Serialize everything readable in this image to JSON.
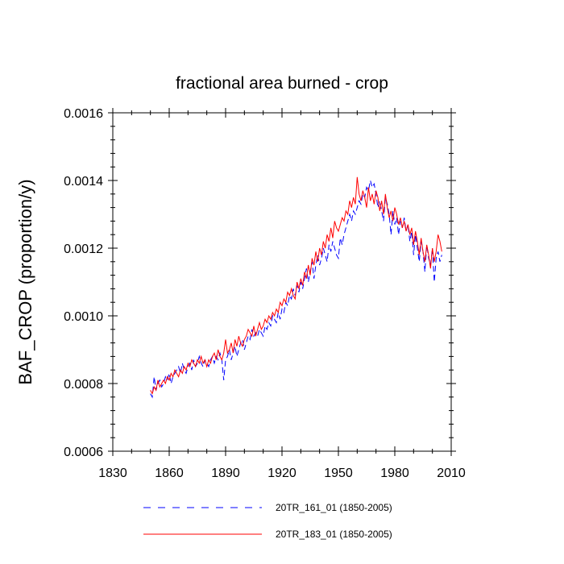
{
  "chart_data": {
    "type": "line",
    "title": "fractional area burned - crop",
    "xlabel": "",
    "ylabel": "BAF_CROP  (proportion/y)",
    "xlim": [
      1830,
      2010
    ],
    "ylim": [
      0.0006,
      0.0016
    ],
    "xticks": [
      1830,
      1860,
      1890,
      1920,
      1950,
      1980,
      2010
    ],
    "yticks": [
      0.0006,
      0.0008,
      0.001,
      0.0012,
      0.0014,
      0.0016
    ],
    "ytick_labels": [
      "0.0006",
      "0.0008",
      "0.0010",
      "0.0012",
      "0.0014",
      "0.0016"
    ],
    "grid": false,
    "legend_position": "bottom",
    "series": [
      {
        "name": "20TR_161_01 (1850-2005)",
        "color": "#0000ff",
        "style": "dashed",
        "x_start": 1850,
        "values": [
          0.00077,
          0.00076,
          0.00082,
          0.00078,
          0.0008,
          0.00081,
          0.00079,
          0.0008,
          0.00082,
          0.00081,
          0.00083,
          0.0008,
          0.00082,
          0.00083,
          0.00084,
          0.00085,
          0.00083,
          0.00086,
          0.00084,
          0.00083,
          0.00085,
          0.00086,
          0.00084,
          0.00087,
          0.00085,
          0.00086,
          0.00088,
          0.00086,
          0.00085,
          0.00087,
          0.00086,
          0.00085,
          0.00087,
          0.00088,
          0.00086,
          0.00088,
          0.00087,
          0.00089,
          0.00087,
          0.00081,
          0.00087,
          0.00088,
          0.0009,
          0.00087,
          0.00089,
          0.00091,
          0.00088,
          0.0009,
          0.00092,
          0.00093,
          0.0009,
          0.00092,
          0.00094,
          0.00093,
          0.00096,
          0.00094,
          0.00095,
          0.00094,
          0.00096,
          0.00095,
          0.00094,
          0.00097,
          0.00096,
          0.00098,
          0.00097,
          0.001,
          0.00099,
          0.00098,
          0.00101,
          0.00099,
          0.00102,
          0.00101,
          0.00104,
          0.00103,
          0.00106,
          0.00105,
          0.00108,
          0.00106,
          0.00109,
          0.00107,
          0.0011,
          0.00108,
          0.00111,
          0.00114,
          0.0011,
          0.00113,
          0.00116,
          0.00111,
          0.00115,
          0.00118,
          0.00115,
          0.00117,
          0.0012,
          0.00118,
          0.00116,
          0.00121,
          0.00119,
          0.00122,
          0.0012,
          0.00118,
          0.00117,
          0.00123,
          0.00121,
          0.00124,
          0.00126,
          0.00128,
          0.0013,
          0.00128,
          0.00131,
          0.0013,
          0.00132,
          0.00134,
          0.00133,
          0.00136,
          0.00135,
          0.00138,
          0.00137,
          0.0014,
          0.00138,
          0.00139,
          0.00136,
          0.00132,
          0.00134,
          0.00131,
          0.00128,
          0.00135,
          0.00133,
          0.0013,
          0.00124,
          0.00131,
          0.00127,
          0.00129,
          0.00124,
          0.00128,
          0.00126,
          0.00129,
          0.00125,
          0.00127,
          0.00122,
          0.00125,
          0.00118,
          0.00124,
          0.0012,
          0.00116,
          0.00122,
          0.00119,
          0.00113,
          0.00121,
          0.00117,
          0.00115,
          0.0012,
          0.0011,
          0.00117,
          0.00119,
          0.00116,
          0.00118
        ]
      },
      {
        "name": "20TR_183_01 (1850-2005)",
        "color": "#ff0000",
        "style": "solid",
        "x_start": 1850,
        "values": [
          0.00078,
          0.00077,
          0.00079,
          0.00078,
          0.00081,
          0.00079,
          0.0008,
          0.00081,
          0.0008,
          0.00082,
          0.00081,
          0.00083,
          0.00082,
          0.00084,
          0.00083,
          0.00082,
          0.00084,
          0.00083,
          0.00085,
          0.00084,
          0.00086,
          0.00085,
          0.00087,
          0.00086,
          0.00085,
          0.00087,
          0.00086,
          0.00088,
          0.00086,
          0.00087,
          0.00085,
          0.00087,
          0.00086,
          0.00088,
          0.00089,
          0.00087,
          0.0009,
          0.00088,
          0.00087,
          0.00089,
          0.00093,
          0.00089,
          0.0009,
          0.00092,
          0.00089,
          0.00093,
          0.00091,
          0.00094,
          0.00092,
          0.00091,
          0.00093,
          0.00094,
          0.00096,
          0.00095,
          0.00094,
          0.00097,
          0.00094,
          0.00096,
          0.00098,
          0.00096,
          0.00097,
          0.00099,
          0.00098,
          0.001,
          0.00099,
          0.00101,
          0.001,
          0.00102,
          0.00101,
          0.00104,
          0.00103,
          0.00105,
          0.00104,
          0.00107,
          0.00106,
          0.00108,
          0.00106,
          0.00105,
          0.0011,
          0.00108,
          0.00111,
          0.00109,
          0.00113,
          0.00111,
          0.00115,
          0.00112,
          0.00117,
          0.00115,
          0.00119,
          0.00116,
          0.0012,
          0.00118,
          0.00122,
          0.0012,
          0.00124,
          0.00122,
          0.00126,
          0.00123,
          0.00128,
          0.00126,
          0.00125,
          0.00127,
          0.00129,
          0.00128,
          0.00131,
          0.0013,
          0.00134,
          0.00132,
          0.00135,
          0.00133,
          0.00141,
          0.00136,
          0.00134,
          0.00137,
          0.00135,
          0.00132,
          0.00138,
          0.00134,
          0.00136,
          0.00133,
          0.00137,
          0.00135,
          0.00131,
          0.00134,
          0.0013,
          0.00136,
          0.00132,
          0.00129,
          0.00131,
          0.00128,
          0.00132,
          0.0013,
          0.00127,
          0.00129,
          0.00126,
          0.00128,
          0.00125,
          0.00127,
          0.00124,
          0.00126,
          0.00121,
          0.00125,
          0.00122,
          0.00118,
          0.00123,
          0.00119,
          0.00116,
          0.00121,
          0.00118,
          0.00114,
          0.0012,
          0.00116,
          0.00119,
          0.00124,
          0.00122,
          0.00119
        ]
      }
    ]
  }
}
